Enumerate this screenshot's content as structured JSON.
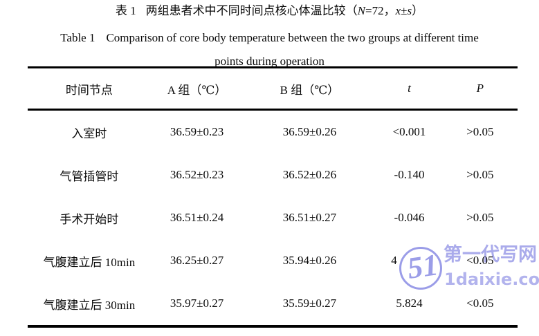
{
  "document": {
    "title_zh": {
      "label": "表 1",
      "text": "两组患者术中不同时间点核心体温比较",
      "stat_open": "（",
      "stat_n": "N",
      "stat_eq": "=72，",
      "stat_x": "x",
      "stat_pm": "±",
      "stat_s": "s",
      "stat_close": "）"
    },
    "title_en": {
      "label": "Table 1",
      "line1": "Comparison of core body temperature between the two groups at different time",
      "line2": "points during operation"
    }
  },
  "table": {
    "headers": [
      "时间节点",
      "A 组（℃）",
      "B 组（℃）",
      "t",
      "P"
    ],
    "rows": [
      [
        "入室时",
        "36.59±0.23",
        "36.59±0.26",
        "<0.001",
        ">0.05"
      ],
      [
        "气管插管时",
        "36.52±0.23",
        "36.52±0.26",
        "-0.140",
        ">0.05"
      ],
      [
        "手术开始时",
        "36.51±0.24",
        "36.51±0.27",
        "-0.046",
        ">0.05"
      ],
      [
        "气腹建立后 10min",
        "36.25±0.27",
        "35.94±0.26",
        "4",
        "<0.05"
      ],
      [
        "气腹建立后 30min",
        "35.97±0.27",
        "35.59±0.27",
        "5.824",
        "<0.05"
      ]
    ]
  },
  "watermark": {
    "logo_text": "51",
    "site_name": "第一代写网",
    "site_url": "1daixie.com",
    "color": "#8a8ce4"
  }
}
